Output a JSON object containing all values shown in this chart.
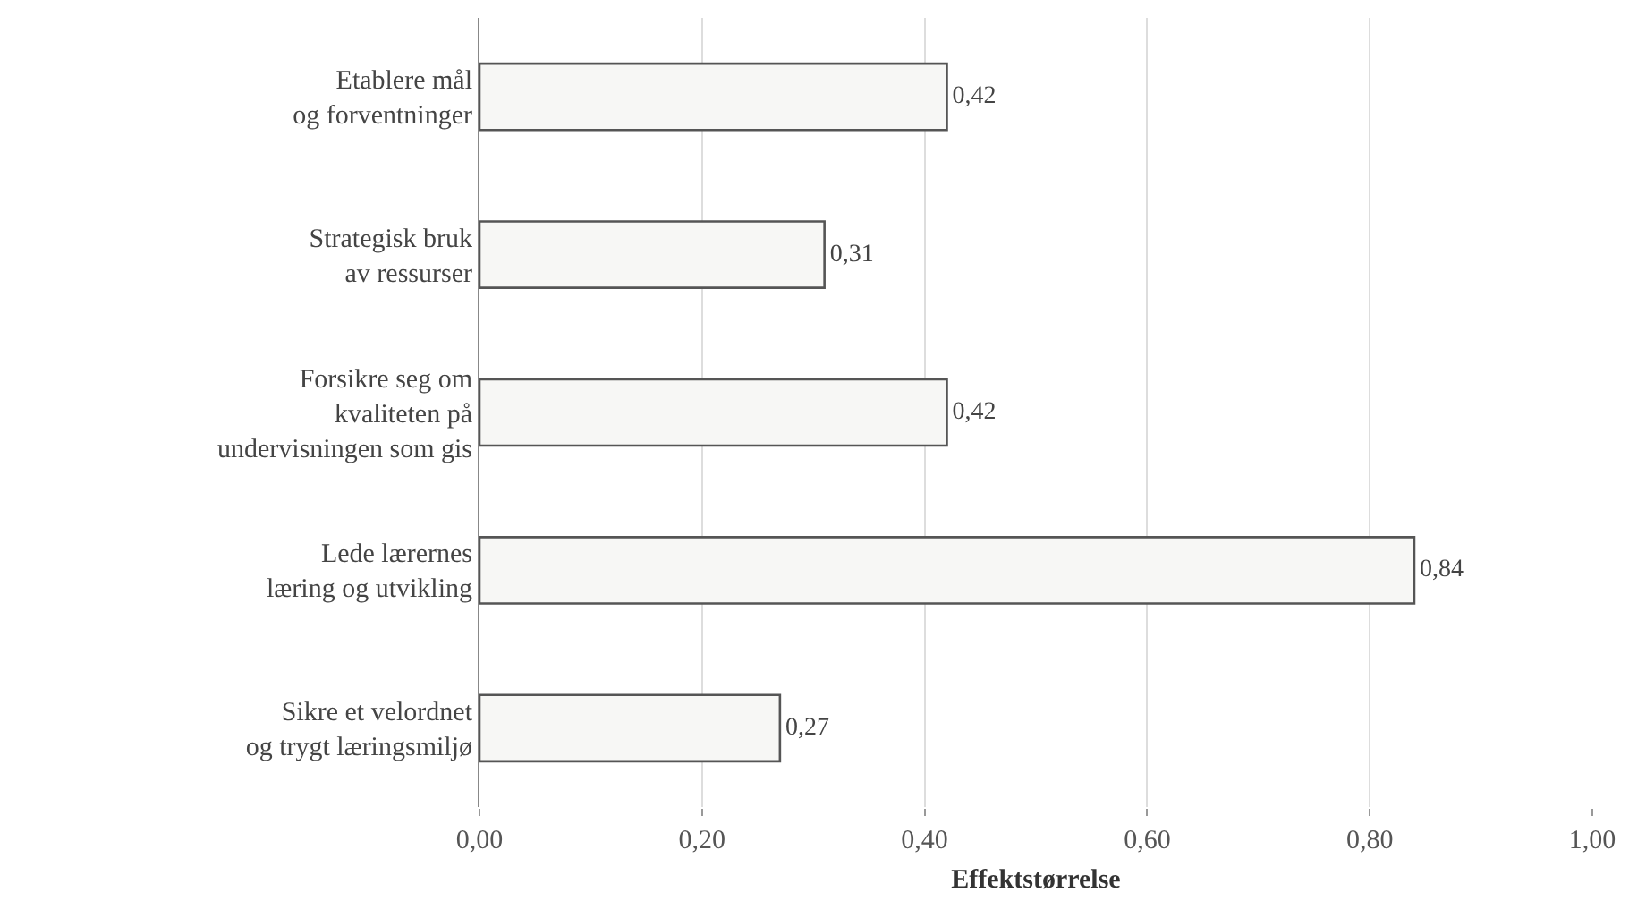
{
  "chart_data": {
    "type": "bar",
    "orientation": "horizontal",
    "xlabel": "Effektstørrelse",
    "categories": [
      "Etablere mål\nog forventninger",
      "Strategisk bruk\nav ressurser",
      "Forsikre seg om\nkvaliteten på\nundervisningen som gis",
      "Lede lærernes\nlæring og utvikling",
      "Sikre et velordnet\nog trygt læringsmiljø"
    ],
    "values": [
      0.42,
      0.31,
      0.42,
      0.84,
      0.27
    ],
    "value_labels": [
      "0,42",
      "0,31",
      "0,42",
      "0,84",
      "0,27"
    ],
    "color": "#f7f7f5",
    "xlim": [
      0,
      1
    ],
    "xticks": [
      {
        "value": 0,
        "label": "0,00"
      },
      {
        "value": 0.2,
        "label": "0,20"
      },
      {
        "value": 0.4,
        "label": "0,40"
      },
      {
        "value": 0.6,
        "label": "0,60"
      },
      {
        "value": 0.8,
        "label": "0,80"
      },
      {
        "value": 1,
        "label": "1,00"
      }
    ],
    "grid": "x"
  }
}
